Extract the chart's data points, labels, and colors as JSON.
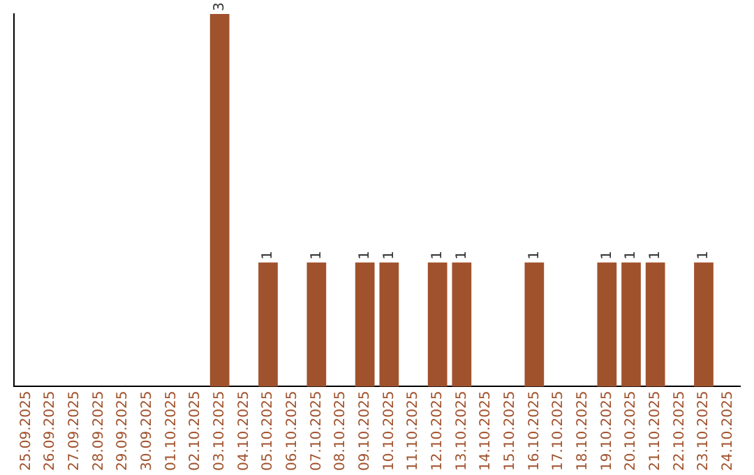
{
  "chart_data": {
    "type": "bar",
    "categories": [
      "25.09.2025",
      "26.09.2025",
      "27.09.2025",
      "28.09.2025",
      "29.09.2025",
      "30.09.2025",
      "01.10.2025",
      "02.10.2025",
      "03.10.2025",
      "04.10.2025",
      "05.10.2025",
      "06.10.2025",
      "07.10.2025",
      "08.10.2025",
      "09.10.2025",
      "10.10.2025",
      "11.10.2025",
      "12.10.2025",
      "13.10.2025",
      "14.10.2025",
      "15.10.2025",
      "16.10.2025",
      "17.10.2025",
      "18.10.2025",
      "19.10.2025",
      "20.10.2025",
      "21.10.2025",
      "22.10.2025",
      "23.10.2025",
      "24.10.2025"
    ],
    "values": [
      0,
      0,
      0,
      0,
      0,
      0,
      0,
      0,
      3,
      0,
      1,
      0,
      1,
      0,
      1,
      1,
      0,
      1,
      1,
      0,
      0,
      1,
      0,
      0,
      1,
      1,
      1,
      0,
      1,
      0
    ],
    "value_labels": [
      null,
      null,
      null,
      null,
      null,
      null,
      null,
      null,
      "3",
      null,
      "1",
      null,
      "1",
      null,
      "1",
      "1",
      null,
      "1",
      "1",
      null,
      null,
      "1",
      null,
      null,
      "1",
      "1",
      "1",
      null,
      "1",
      null
    ],
    "color": "#a0522d",
    "grid": false,
    "legend": false,
    "tick_labels": "x"
  }
}
